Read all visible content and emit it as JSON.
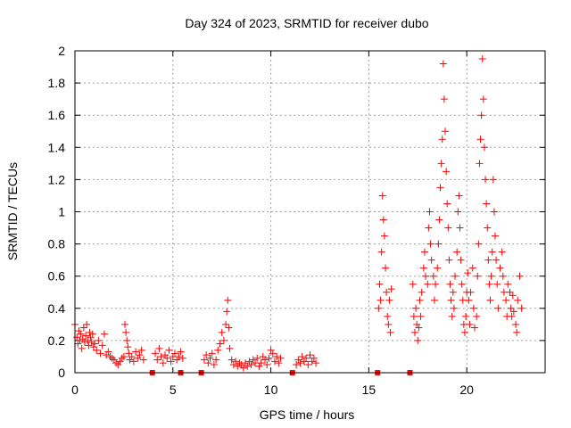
{
  "chart_data": {
    "type": "scatter",
    "title": "Day 324 of 2023, SRMTID for receiver dubo",
    "xlabel": "GPS time / hours",
    "ylabel": "SRMTID / TECUs",
    "xlim": [
      0,
      24
    ],
    "ylim": [
      0,
      2
    ],
    "xticks": [
      0,
      5,
      10,
      15,
      20
    ],
    "yticks": [
      0,
      0.2,
      0.4,
      0.6,
      0.8,
      1,
      1.2,
      1.4,
      1.6,
      1.8,
      2
    ],
    "xtick_labels": [
      "0",
      "5",
      "10",
      "15",
      "20"
    ],
    "ytick_labels": [
      "0",
      "0.2",
      "0.4",
      "0.6",
      "0.8",
      "1",
      "1.2",
      "1.4",
      "1.6",
      "1.8",
      "2"
    ],
    "grid": true,
    "marker": "+",
    "color": "#ff0000",
    "series": [
      {
        "name": "SRMTID",
        "points": [
          [
            0.0,
            0.3
          ],
          [
            0.1,
            0.22
          ],
          [
            0.15,
            0.18
          ],
          [
            0.2,
            0.26
          ],
          [
            0.25,
            0.2
          ],
          [
            0.3,
            0.24
          ],
          [
            0.35,
            0.15
          ],
          [
            0.4,
            0.21
          ],
          [
            0.45,
            0.28
          ],
          [
            0.5,
            0.19
          ],
          [
            0.55,
            0.23
          ],
          [
            0.6,
            0.3
          ],
          [
            0.65,
            0.2
          ],
          [
            0.7,
            0.17
          ],
          [
            0.75,
            0.25
          ],
          [
            0.8,
            0.22
          ],
          [
            0.85,
            0.19
          ],
          [
            0.9,
            0.24
          ],
          [
            0.95,
            0.16
          ],
          [
            1.0,
            0.18
          ],
          [
            1.1,
            0.14
          ],
          [
            1.2,
            0.2
          ],
          [
            1.3,
            0.12
          ],
          [
            1.4,
            0.17
          ],
          [
            1.5,
            0.24
          ],
          [
            1.6,
            0.11
          ],
          [
            1.7,
            0.13
          ],
          [
            1.8,
            0.1
          ],
          [
            1.9,
            0.09
          ],
          [
            2.0,
            0.08
          ],
          [
            2.1,
            0.06
          ],
          [
            2.2,
            0.05
          ],
          [
            2.3,
            0.07
          ],
          [
            2.4,
            0.09
          ],
          [
            2.5,
            0.1
          ],
          [
            2.55,
            0.3
          ],
          [
            2.6,
            0.25
          ],
          [
            2.65,
            0.2
          ],
          [
            2.7,
            0.16
          ],
          [
            2.75,
            0.12
          ],
          [
            2.8,
            0.08
          ],
          [
            2.9,
            0.1
          ],
          [
            3.0,
            0.07
          ],
          [
            3.1,
            0.13
          ],
          [
            3.2,
            0.09
          ],
          [
            3.3,
            0.11
          ],
          [
            3.4,
            0.14
          ],
          [
            3.5,
            0.08
          ],
          [
            4.1,
            0.12
          ],
          [
            4.2,
            0.08
          ],
          [
            4.3,
            0.15
          ],
          [
            4.4,
            0.1
          ],
          [
            4.5,
            0.06
          ],
          [
            4.6,
            0.11
          ],
          [
            4.7,
            0.09
          ],
          [
            4.8,
            0.14
          ],
          [
            4.9,
            0.07
          ],
          [
            5.0,
            0.1
          ],
          [
            5.1,
            0.12
          ],
          [
            5.2,
            0.08
          ],
          [
            5.3,
            0.1
          ],
          [
            5.4,
            0.13
          ],
          [
            5.5,
            0.09
          ],
          [
            6.6,
            0.08
          ],
          [
            6.7,
            0.11
          ],
          [
            6.8,
            0.06
          ],
          [
            6.9,
            0.09
          ],
          [
            7.0,
            0.12
          ],
          [
            7.1,
            0.05
          ],
          [
            7.2,
            0.08
          ],
          [
            7.3,
            0.14
          ],
          [
            7.4,
            0.18
          ],
          [
            7.5,
            0.25
          ],
          [
            7.6,
            0.2
          ],
          [
            7.7,
            0.3
          ],
          [
            7.75,
            0.38
          ],
          [
            7.8,
            0.45
          ],
          [
            7.85,
            0.28
          ],
          [
            7.9,
            0.15
          ],
          [
            8.0,
            0.08
          ],
          [
            8.1,
            0.05
          ],
          [
            8.2,
            0.07
          ],
          [
            8.3,
            0.04
          ],
          [
            8.4,
            0.06
          ],
          [
            8.5,
            0.05
          ],
          [
            8.6,
            0.03
          ],
          [
            8.7,
            0.06
          ],
          [
            8.8,
            0.04
          ],
          [
            8.9,
            0.07
          ],
          [
            9.0,
            0.05
          ],
          [
            9.1,
            0.08
          ],
          [
            9.2,
            0.06
          ],
          [
            9.3,
            0.09
          ],
          [
            9.4,
            0.04
          ],
          [
            9.5,
            0.06
          ],
          [
            9.6,
            0.1
          ],
          [
            9.7,
            0.08
          ],
          [
            9.8,
            0.05
          ],
          [
            9.9,
            0.09
          ],
          [
            10.0,
            0.14
          ],
          [
            10.1,
            0.12
          ],
          [
            10.2,
            0.07
          ],
          [
            10.3,
            0.1
          ],
          [
            10.4,
            0.06
          ],
          [
            10.5,
            0.09
          ],
          [
            11.3,
            0.05
          ],
          [
            11.4,
            0.08
          ],
          [
            11.5,
            0.06
          ],
          [
            11.6,
            0.1
          ],
          [
            11.7,
            0.07
          ],
          [
            11.8,
            0.09
          ],
          [
            11.9,
            0.05
          ],
          [
            12.0,
            0.11
          ],
          [
            12.1,
            0.07
          ],
          [
            12.2,
            0.09
          ],
          [
            12.3,
            0.06
          ],
          [
            15.5,
            0.4
          ],
          [
            15.55,
            0.55
          ],
          [
            15.6,
            0.45
          ],
          [
            15.65,
            0.75
          ],
          [
            15.7,
            1.1
          ],
          [
            15.75,
            0.95
          ],
          [
            15.8,
            0.85
          ],
          [
            15.85,
            0.65
          ],
          [
            15.9,
            0.5
          ],
          [
            15.95,
            0.35
          ],
          [
            16.0,
            0.3
          ],
          [
            16.05,
            0.45
          ],
          [
            16.1,
            0.25
          ],
          [
            16.15,
            0.52
          ],
          [
            17.25,
            0.55
          ],
          [
            17.3,
            0.35
          ],
          [
            17.35,
            0.25
          ],
          [
            17.4,
            0.4
          ],
          [
            17.45,
            0.3
          ],
          [
            17.5,
            0.2
          ],
          [
            17.55,
            0.28
          ],
          [
            17.6,
            0.45
          ],
          [
            17.65,
            0.35
          ],
          [
            17.7,
            0.5
          ],
          [
            17.8,
            0.65
          ],
          [
            17.85,
            0.75
          ],
          [
            17.9,
            0.6
          ],
          [
            18.0,
            0.55
          ],
          [
            18.05,
            0.9
          ],
          [
            18.1,
            1.0
          ],
          [
            18.15,
            0.8
          ],
          [
            18.2,
            0.7
          ],
          [
            18.3,
            0.6
          ],
          [
            18.35,
            0.45
          ],
          [
            18.4,
            0.55
          ],
          [
            18.5,
            0.65
          ],
          [
            18.55,
            0.8
          ],
          [
            18.6,
            0.95
          ],
          [
            18.65,
            1.15
          ],
          [
            18.7,
            1.3
          ],
          [
            18.75,
            1.45
          ],
          [
            18.8,
            1.92
          ],
          [
            18.85,
            1.7
          ],
          [
            18.9,
            1.5
          ],
          [
            18.95,
            1.25
          ],
          [
            19.0,
            1.05
          ],
          [
            19.05,
            0.9
          ],
          [
            19.1,
            0.7
          ],
          [
            19.15,
            0.55
          ],
          [
            19.2,
            0.45
          ],
          [
            19.25,
            0.35
          ],
          [
            19.3,
            0.5
          ],
          [
            19.35,
            0.4
          ],
          [
            19.4,
            0.6
          ],
          [
            19.5,
            0.75
          ],
          [
            19.55,
            1.0
          ],
          [
            19.6,
            1.1
          ],
          [
            19.65,
            0.9
          ],
          [
            19.7,
            0.7
          ],
          [
            19.75,
            0.55
          ],
          [
            19.8,
            0.45
          ],
          [
            19.85,
            0.3
          ],
          [
            19.9,
            0.25
          ],
          [
            19.95,
            0.35
          ],
          [
            20.0,
            0.5
          ],
          [
            20.05,
            0.62
          ],
          [
            20.1,
            0.45
          ],
          [
            20.15,
            0.3
          ],
          [
            20.2,
            0.5
          ],
          [
            20.3,
            0.65
          ],
          [
            20.35,
            0.4
          ],
          [
            20.4,
            0.28
          ],
          [
            20.5,
            0.35
          ],
          [
            20.55,
            0.6
          ],
          [
            20.6,
            0.8
          ],
          [
            20.65,
            1.3
          ],
          [
            20.7,
            1.45
          ],
          [
            20.75,
            1.6
          ],
          [
            20.8,
            1.95
          ],
          [
            20.85,
            1.7
          ],
          [
            20.9,
            1.4
          ],
          [
            20.95,
            1.2
          ],
          [
            21.0,
            1.05
          ],
          [
            21.05,
            0.9
          ],
          [
            21.1,
            0.7
          ],
          [
            21.15,
            0.55
          ],
          [
            21.2,
            0.45
          ],
          [
            21.25,
            0.6
          ],
          [
            21.3,
            0.75
          ],
          [
            21.35,
            1.2
          ],
          [
            21.4,
            1.0
          ],
          [
            21.45,
            0.85
          ],
          [
            21.5,
            0.7
          ],
          [
            21.55,
            0.55
          ],
          [
            21.6,
            0.4
          ],
          [
            21.7,
            0.65
          ],
          [
            21.8,
            0.75
          ],
          [
            21.85,
            0.6
          ],
          [
            21.9,
            0.5
          ],
          [
            22.0,
            0.45
          ],
          [
            22.05,
            0.35
          ],
          [
            22.1,
            0.55
          ],
          [
            22.2,
            0.5
          ],
          [
            22.25,
            0.4
          ],
          [
            22.3,
            0.35
          ],
          [
            22.35,
            0.48
          ],
          [
            22.4,
            0.38
          ],
          [
            22.5,
            0.3
          ],
          [
            22.55,
            0.25
          ],
          [
            22.6,
            0.45
          ],
          [
            22.7,
            0.6
          ],
          [
            22.8,
            0.4
          ]
        ]
      },
      {
        "name": "zero-markers",
        "marker": "square",
        "points": [
          [
            3.95,
            0
          ],
          [
            5.4,
            0
          ],
          [
            6.45,
            0
          ],
          [
            11.1,
            0
          ],
          [
            15.45,
            0
          ],
          [
            17.1,
            0
          ]
        ]
      }
    ]
  }
}
